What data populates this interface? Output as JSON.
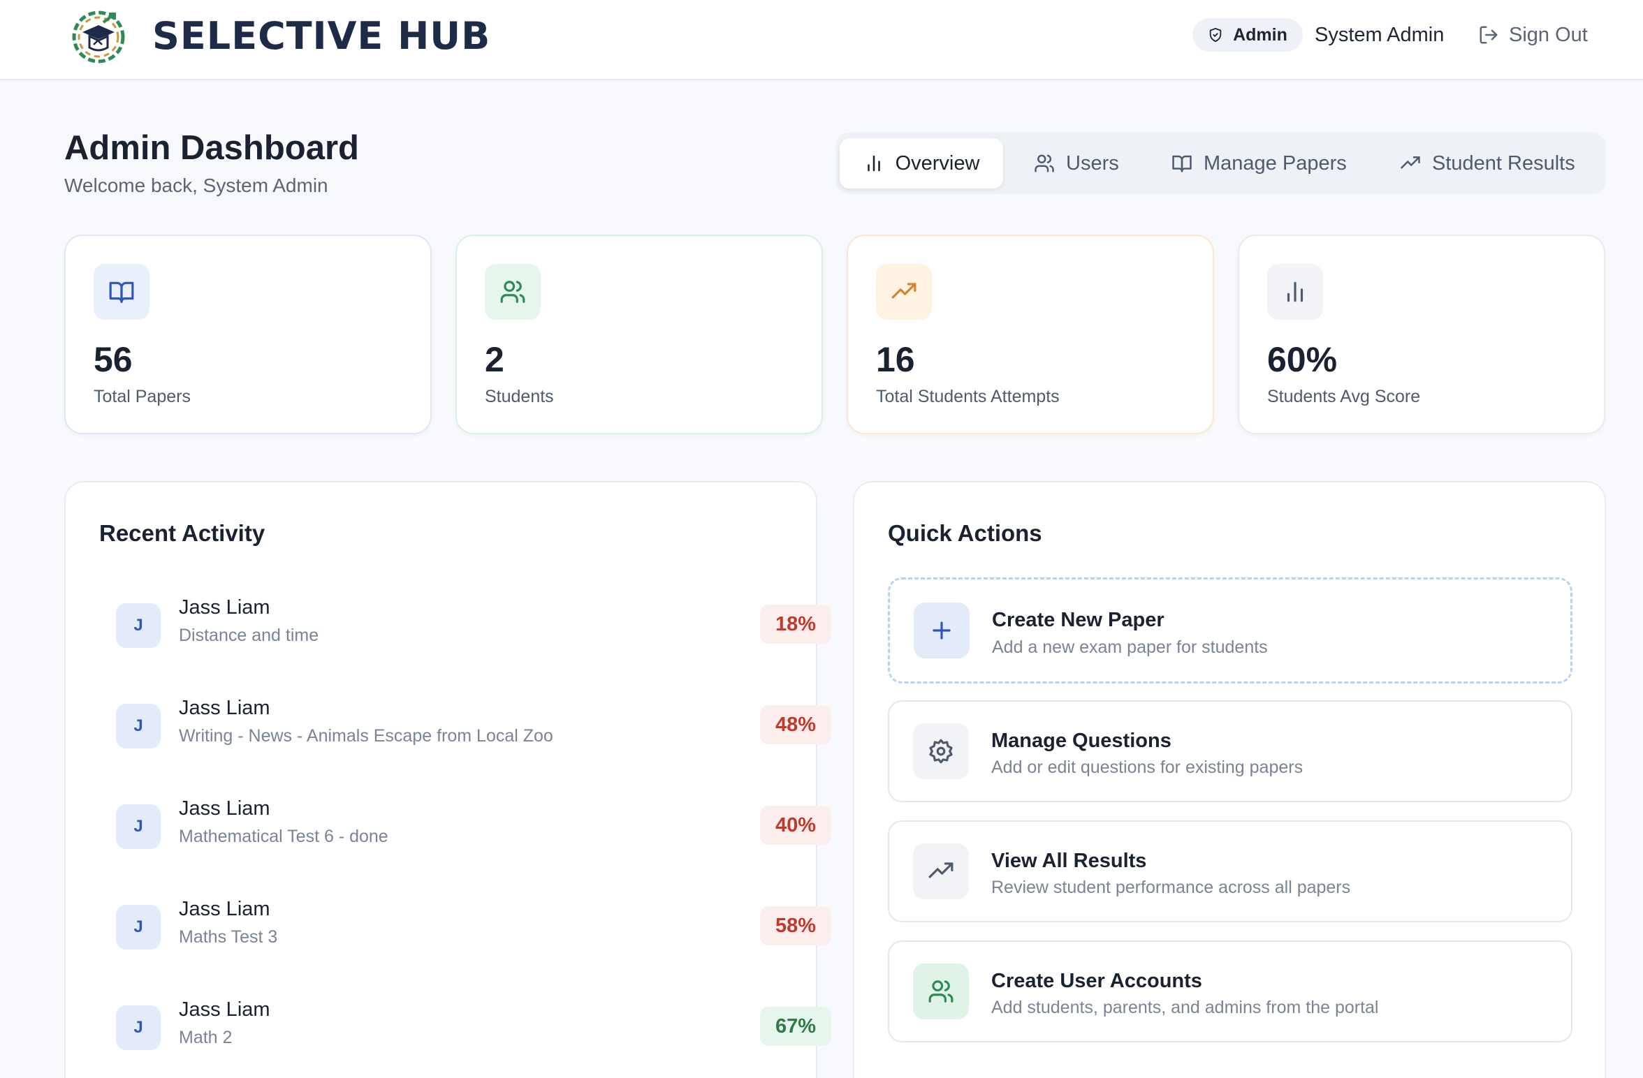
{
  "header": {
    "brand": "SELECTIVE HUB",
    "role_badge": "Admin",
    "user_name": "System Admin",
    "sign_out": "Sign Out"
  },
  "page": {
    "title": "Admin Dashboard",
    "subtitle": "Welcome back, System Admin"
  },
  "tabs": [
    {
      "label": "Overview",
      "icon": "bar-chart-icon",
      "active": true
    },
    {
      "label": "Users",
      "icon": "users-icon",
      "active": false
    },
    {
      "label": "Manage Papers",
      "icon": "book-open-icon",
      "active": false
    },
    {
      "label": "Student Results",
      "icon": "trending-up-icon",
      "active": false
    }
  ],
  "stats": [
    {
      "value": "56",
      "label": "Total Papers",
      "icon": "book-open-icon",
      "color": "#2f56b8"
    },
    {
      "value": "2",
      "label": "Students",
      "icon": "users-icon",
      "color": "#2e8a57"
    },
    {
      "value": "16",
      "label": "Total Students Attempts",
      "icon": "trending-up-icon",
      "color": "#d9822b"
    },
    {
      "value": "60%",
      "label": "Students Avg Score",
      "icon": "bar-chart-icon",
      "color": "#4f5a6d"
    }
  ],
  "recent_activity": {
    "title": "Recent Activity",
    "items": [
      {
        "initial": "J",
        "name": "Jass Liam",
        "paper": "Distance and time",
        "score": "18%"
      },
      {
        "initial": "J",
        "name": "Jass Liam",
        "paper": "Writing - News - Animals Escape from Local Zoo",
        "score": "48%"
      },
      {
        "initial": "J",
        "name": "Jass Liam",
        "paper": "Mathematical Test 6 - done",
        "score": "40%"
      },
      {
        "initial": "J",
        "name": "Jass Liam",
        "paper": "Maths Test 3",
        "score": "58%"
      },
      {
        "initial": "J",
        "name": "Jass Liam",
        "paper": "Math 2",
        "score": "67%"
      }
    ]
  },
  "quick_actions": {
    "title": "Quick Actions",
    "items": [
      {
        "title": "Create New Paper",
        "desc": "Add a new exam paper for students",
        "icon": "plus-icon"
      },
      {
        "title": "Manage Questions",
        "desc": "Add or edit questions for existing papers",
        "icon": "gear-icon"
      },
      {
        "title": "View All Results",
        "desc": "Review student performance across all papers",
        "icon": "trending-up-icon"
      },
      {
        "title": "Create User Accounts",
        "desc": "Add students, parents, and admins from the portal",
        "icon": "users-icon"
      }
    ]
  }
}
